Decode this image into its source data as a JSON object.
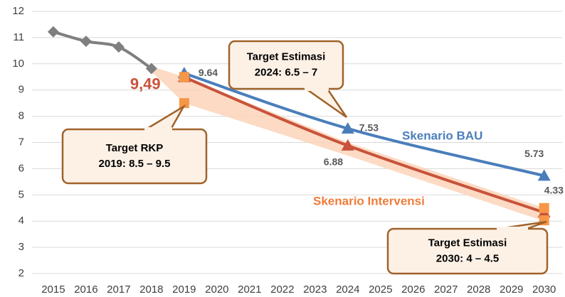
{
  "chart_data": {
    "type": "line",
    "xlim": [
      2014.35,
      2030.55
    ],
    "xticks": [
      2015,
      2016,
      2017,
      2018,
      2019,
      2020,
      2021,
      2022,
      2023,
      2024,
      2025,
      2026,
      2027,
      2028,
      2029,
      2030
    ],
    "ylim": [
      2,
      12
    ],
    "yticks": [
      2,
      3,
      4,
      5,
      6,
      7,
      8,
      9,
      10,
      11,
      12
    ],
    "grid": true,
    "band": {
      "color": "#fbd3b8",
      "x": [
        2018,
        2019,
        2024,
        2030
      ],
      "upper": [
        9.9,
        9.5,
        7,
        4.5
      ],
      "lower": [
        9.7,
        8.5,
        6.5,
        4
      ]
    },
    "series": [
      {
        "color": "#7f7f7f",
        "marker": "diamond",
        "x": [
          2015,
          2016,
          2017,
          2018
        ],
        "values": [
          11.22,
          10.86,
          10.64,
          9.82
        ]
      },
      {
        "name": "Skenario BAU",
        "color": "#4a7ebb",
        "marker": "triangle",
        "x": [
          2019,
          2024,
          2030
        ],
        "values": [
          9.64,
          7.53,
          5.73
        ]
      },
      {
        "name": "Skenario Intervensi",
        "color": "#c9533b",
        "marker": "triangle",
        "x": [
          2019,
          2024,
          2030
        ],
        "values": [
          9.49,
          6.88,
          4.33
        ],
        "value_labels": [
          "9,49",
          "6.88",
          "4.33"
        ]
      },
      {
        "color": "#f79646",
        "marker": "square",
        "mode": "markers",
        "x": [
          2019,
          2019,
          2030,
          2030
        ],
        "values": [
          9.5,
          8.5,
          4.5,
          4.03
        ]
      }
    ],
    "annotations": [
      {
        "lines": [
          "Target Estimasi",
          "2024: 6.5 – 7"
        ]
      },
      {
        "lines": [
          "Target RKP",
          "2019: 8.5 – 9.5"
        ]
      },
      {
        "lines": [
          "Target Estimasi",
          "2030: 4 – 4.5"
        ]
      }
    ]
  }
}
